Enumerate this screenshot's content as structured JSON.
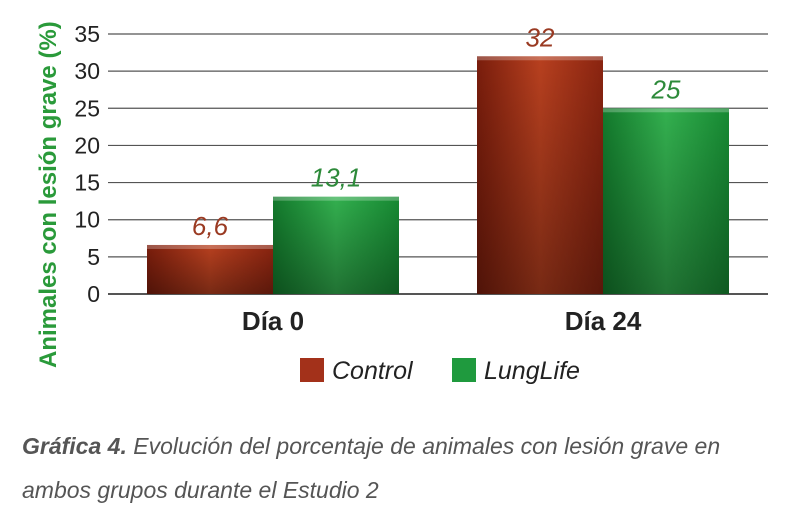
{
  "chart_data": {
    "type": "bar",
    "ylabel": "Animales con lesión grave (%)",
    "ylim": [
      0,
      35
    ],
    "yticks": [
      0,
      5,
      10,
      15,
      20,
      25,
      30,
      35
    ],
    "categories": [
      "Día 0",
      "Día 24"
    ],
    "series": [
      {
        "name": "Control",
        "values": [
          6.6,
          32
        ],
        "labels": [
          "6,6",
          "32"
        ],
        "color": "#a3311a",
        "label_color": "#9a3a22"
      },
      {
        "name": "LungLife",
        "values": [
          13.1,
          25
        ],
        "labels": [
          "13,1",
          "25"
        ],
        "color": "#1f9a3e",
        "label_color": "#2d8a3a"
      }
    ],
    "grid": true,
    "legend": "bottom",
    "ylabel_color": "#2a9a3a"
  },
  "caption": {
    "label": "Gráfica 4.",
    "text": " Evolución del porcentaje de animales con lesión grave en ambos grupos durante el Estudio 2"
  }
}
